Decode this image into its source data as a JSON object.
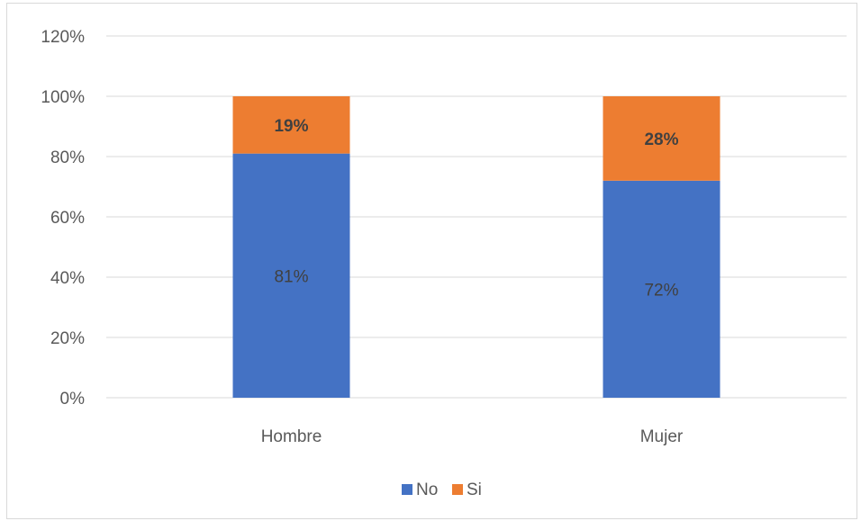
{
  "chart_data": {
    "type": "bar",
    "stacked": true,
    "categories": [
      "Hombre",
      "Mujer"
    ],
    "series": [
      {
        "name": "No",
        "values": [
          81,
          72
        ],
        "labels": [
          "81%",
          "72%"
        ],
        "color": "#4472c4",
        "label_color": "#404040",
        "label_bold": false
      },
      {
        "name": "Si",
        "values": [
          19,
          28
        ],
        "labels": [
          "19%",
          "28%"
        ],
        "color": "#ed7d31",
        "label_color": "#404040",
        "label_bold": true
      }
    ],
    "ylim": [
      0,
      120
    ],
    "yticks": [
      0,
      20,
      40,
      60,
      80,
      100,
      120
    ],
    "ytick_labels": [
      "0%",
      "20%",
      "40%",
      "60%",
      "80%",
      "100%",
      "120%"
    ],
    "grid": true,
    "gridline_color": "#d9d9d9",
    "legend_position": "bottom"
  }
}
